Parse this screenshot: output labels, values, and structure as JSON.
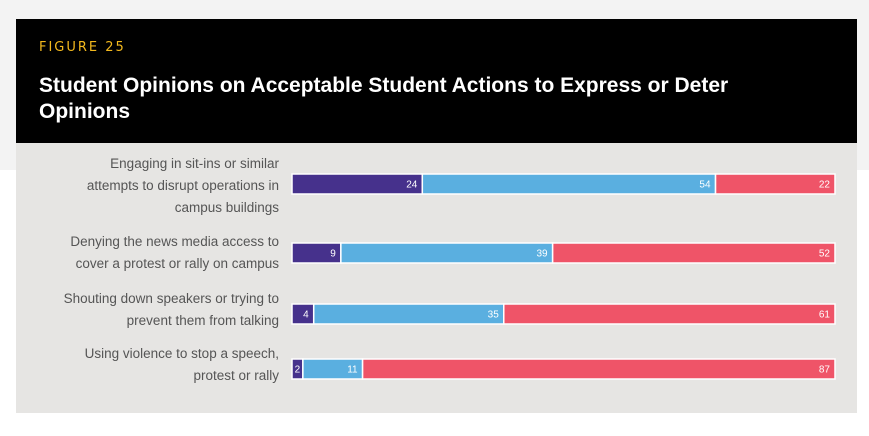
{
  "figure_label": "FIGURE 25",
  "title": "Student Opinions on Acceptable Student Actions to Express or Deter Opinions",
  "colors": {
    "series_1": "#46318c",
    "series_2": "#5aafe0",
    "series_3": "#ef5468",
    "header_bg": "#000000",
    "figure_label": "#f2b81d",
    "card_bg": "#e6e5e3"
  },
  "chart_data": {
    "type": "bar",
    "orientation": "horizontal",
    "stacked": true,
    "categories": [
      "Engaging in sit-ins or similar attempts to disrupt operations in campus buildings",
      "Denying the news media access to cover a protest or rally on campus",
      "Shouting down speakers or trying to prevent them from talking",
      "Using violence to stop a speech, protest or rally"
    ],
    "category_lines": [
      [
        "Engaging in sit-ins or similar",
        "attempts to disrupt operations in",
        "campus buildings"
      ],
      [
        "Denying the news media access to",
        "cover a protest or rally on campus"
      ],
      [
        "Shouting down speakers or trying to",
        "prevent them from talking"
      ],
      [
        "Using violence to stop a speech,",
        "protest or rally"
      ]
    ],
    "series": [
      {
        "values": [
          24,
          9,
          4,
          2
        ],
        "color": "#46318c"
      },
      {
        "values": [
          54,
          39,
          35,
          11
        ],
        "color": "#5aafe0"
      },
      {
        "values": [
          22,
          52,
          61,
          87
        ],
        "color": "#ef5468"
      }
    ],
    "xlim": [
      0,
      100
    ],
    "grid": false,
    "legend": "none"
  }
}
